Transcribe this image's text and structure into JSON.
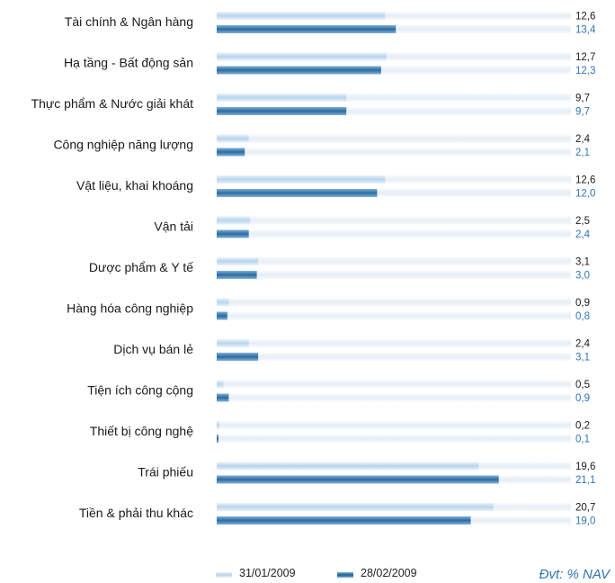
{
  "chart_data": {
    "type": "bar",
    "orientation": "horizontal",
    "categories": [
      "Tài chính & Ngân hàng",
      "Hạ tầng - Bất động sản",
      "Thực phẩm & Nước giải khát",
      "Công nghiệp năng lượng",
      "Vật liệu, khai khoáng",
      "Vận tải",
      "Dược phẩm & Y tế",
      "Hàng hóa công nghiệp",
      "Dịch vụ bán lẻ",
      "Tiện ích công cộng",
      "Thiết bị công nghệ",
      "Trái phiếu",
      "Tiền & phải thu khác"
    ],
    "series": [
      {
        "name": "31/01/2009",
        "values": [
          12.6,
          12.7,
          9.7,
          2.4,
          12.6,
          2.5,
          3.1,
          0.9,
          2.4,
          0.5,
          0.2,
          19.6,
          20.7
        ],
        "labels": [
          "12,6",
          "12,7",
          "9,7",
          "2,4",
          "12,6",
          "2,5",
          "3,1",
          "0,9",
          "2,4",
          "0,5",
          "0,2",
          "19,6",
          "20,7"
        ],
        "color": "#b8d4ec"
      },
      {
        "name": "28/02/2009",
        "values": [
          13.4,
          12.3,
          9.7,
          2.1,
          12.0,
          2.4,
          3.0,
          0.8,
          3.1,
          0.9,
          0.1,
          21.1,
          19.0
        ],
        "labels": [
          "13,4",
          "12,3",
          "9,7",
          "2,1",
          "12,0",
          "2,4",
          "3,0",
          "0,8",
          "3,1",
          "0,9",
          "0,1",
          "21,1",
          "19,0"
        ],
        "color": "#2c6aa0"
      }
    ],
    "xlim": [
      0,
      26.5
    ],
    "grid": false,
    "legend": "bottom",
    "unit_note": "Đvt: % NAV"
  }
}
